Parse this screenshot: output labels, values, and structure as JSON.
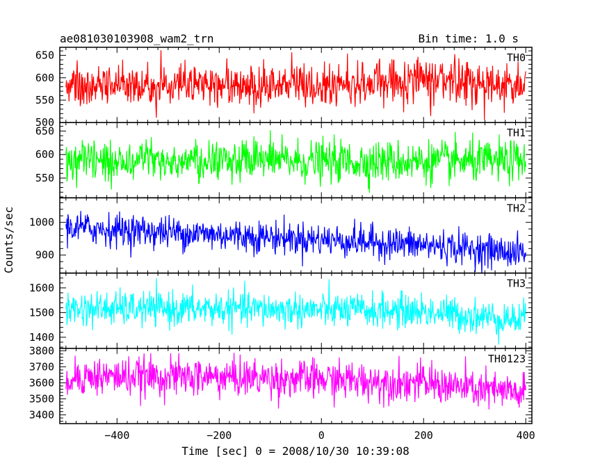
{
  "header": {
    "title": "ae081030103908_wam2_trn",
    "bin_time": "Bin time: 1.0 s"
  },
  "chart_data": {
    "type": "line",
    "xlabel": "Time [sec] 0 = 2008/10/30 10:39:08",
    "ylabel": "Counts/sec",
    "xlim": [
      -512,
      412
    ],
    "x_range": [
      -500,
      400
    ],
    "x_step": 1,
    "xticks": [
      -400,
      -200,
      0,
      200,
      400
    ],
    "xtick_labels": [
      "−400",
      "−200",
      "0",
      "200",
      "400"
    ],
    "panels": [
      {
        "name": "TH0",
        "color": "#ff0000",
        "ylim": [
          500,
          668
        ],
        "yticks": [
          500,
          550,
          600,
          650
        ],
        "ytick_labels": [
          "500",
          "550",
          "600",
          "650"
        ],
        "mean_profile": [
          [
            -500,
            583
          ],
          [
            -300,
            585
          ],
          [
            -100,
            586
          ],
          [
            100,
            588
          ],
          [
            200,
            595
          ],
          [
            250,
            600
          ],
          [
            300,
            590
          ],
          [
            400,
            580
          ]
        ],
        "noise_sd": 24
      },
      {
        "name": "TH1",
        "color": "#00ff00",
        "ylim": [
          508,
          668
        ],
        "yticks": [
          550,
          600,
          650
        ],
        "ytick_labels": [
          "550",
          "600",
          "650"
        ],
        "mean_profile": [
          [
            -500,
            585
          ],
          [
            -200,
            588
          ],
          [
            0,
            585
          ],
          [
            200,
            585
          ],
          [
            400,
            585
          ]
        ],
        "noise_sd": 22
      },
      {
        "name": "TH2",
        "color": "#0000ff",
        "ylim": [
          845,
          1075
        ],
        "yticks": [
          900,
          1000
        ],
        "ytick_labels": [
          "900",
          "1000"
        ],
        "mean_profile": [
          [
            -500,
            985
          ],
          [
            -300,
            970
          ],
          [
            -100,
            955
          ],
          [
            100,
            940
          ],
          [
            250,
            925
          ],
          [
            400,
            905
          ]
        ],
        "noise_sd": 25
      },
      {
        "name": "TH3",
        "color": "#00ffff",
        "ylim": [
          1355,
          1660
        ],
        "yticks": [
          1400,
          1500,
          1600
        ],
        "ytick_labels": [
          "1400",
          "1500",
          "1600"
        ],
        "mean_profile": [
          [
            -500,
            1515
          ],
          [
            -200,
            1515
          ],
          [
            0,
            1510
          ],
          [
            200,
            1505
          ],
          [
            300,
            1485
          ],
          [
            400,
            1470
          ]
        ],
        "noise_sd": 35
      },
      {
        "name": "TH0123",
        "color": "#ff00ff",
        "ylim": [
          3345,
          3815
        ],
        "yticks": [
          3400,
          3500,
          3600,
          3700,
          3800
        ],
        "ytick_labels": [
          "3400",
          "3500",
          "3600",
          "3700",
          "3800"
        ],
        "mean_profile": [
          [
            -500,
            3640
          ],
          [
            -200,
            3635
          ],
          [
            0,
            3620
          ],
          [
            200,
            3600
          ],
          [
            300,
            3560
          ],
          [
            400,
            3530
          ]
        ],
        "noise_sd": 60
      }
    ]
  }
}
